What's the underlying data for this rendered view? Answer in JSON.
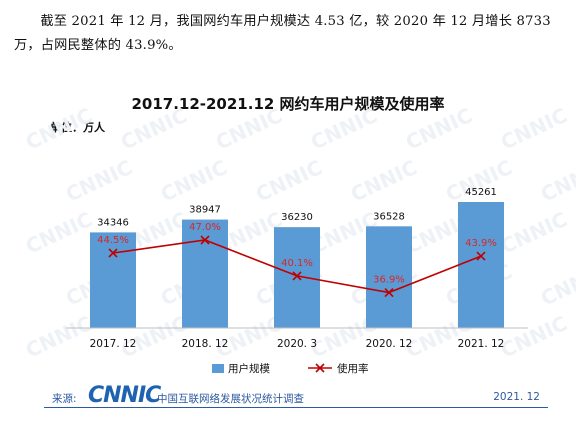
{
  "intro_text": "截至 2021 年 12 月，我国网约车用户规模达 4.53 亿，较 2020 年 12 月增长 8733 万，占网民整体的 43.9%。",
  "watermark_text": "CNNIC",
  "colors": {
    "bar": "#5b9bd5",
    "line": "#c00000",
    "line_label": "#d62728",
    "footer": "#2c5aa0"
  },
  "chart_data": {
    "type": "bar",
    "title": "2017.12-2021.12 网约车用户规模及使用率",
    "unit_label": "单位：万人",
    "categories": [
      "2017. 12",
      "2018. 12",
      "2020. 3",
      "2020. 12",
      "2021. 12"
    ],
    "series": [
      {
        "name": "用户规模",
        "type": "bar",
        "values": [
          34346,
          38947,
          36230,
          36528,
          45261
        ]
      },
      {
        "name": "使用率",
        "type": "line",
        "values": [
          44.5,
          47.0,
          40.1,
          36.9,
          43.9
        ],
        "labels": [
          "44.5%",
          "47.0%",
          "40.1%",
          "36.9%",
          "43.9%"
        ]
      }
    ],
    "legend": [
      "用户规模",
      "使用率"
    ],
    "legend_position": "bottom",
    "grid": false
  },
  "footer": {
    "source_label": "来源:",
    "logo": "CNNIC",
    "subtitle": "中国互联网络发展状况统计调查",
    "date": "2021. 12"
  }
}
